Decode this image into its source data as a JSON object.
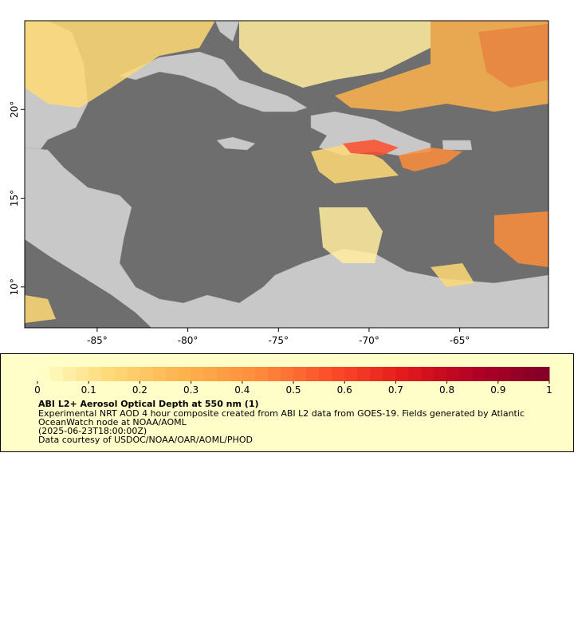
{
  "map": {
    "xlim": [
      -89,
      -60.1
    ],
    "ylim": [
      7.7,
      25
    ],
    "xticks": [
      {
        "value": -85,
        "label": "-85°"
      },
      {
        "value": -80,
        "label": "-80°"
      },
      {
        "value": -75,
        "label": "-75°"
      },
      {
        "value": -70,
        "label": "-70°"
      },
      {
        "value": -65,
        "label": "-65°"
      }
    ],
    "yticks": [
      {
        "value": 10,
        "label": "10°"
      },
      {
        "value": 15,
        "label": "15°"
      },
      {
        "value": 20,
        "label": "20°"
      }
    ]
  },
  "legend": {
    "colorbar": {
      "lim": [
        0,
        1
      ],
      "ticks": [
        0,
        0.1,
        0.2,
        0.3,
        0.4,
        0.5,
        0.6,
        0.7,
        0.8,
        0.9,
        1
      ],
      "colors": [
        "#ffffcc",
        "#fed976",
        "#feb24c",
        "#fd8d3c",
        "#fc4e2a",
        "#e31a1c",
        "#b10026",
        "#800026"
      ]
    },
    "title": "ABI L2+ Aerosol Optical Depth at 550 nm (1)",
    "description": [
      "Experimental NRT AOD 4 hour composite created from ABI L2 data from GOES-19. Fields generated by Atlantic",
      "OceanWatch node at NOAA/AOML"
    ],
    "time": "(2025-06-23T18:00:00Z)",
    "credit": "Data courtesy of USDOC/NOAA/OAR/AOML/PHOD"
  }
}
